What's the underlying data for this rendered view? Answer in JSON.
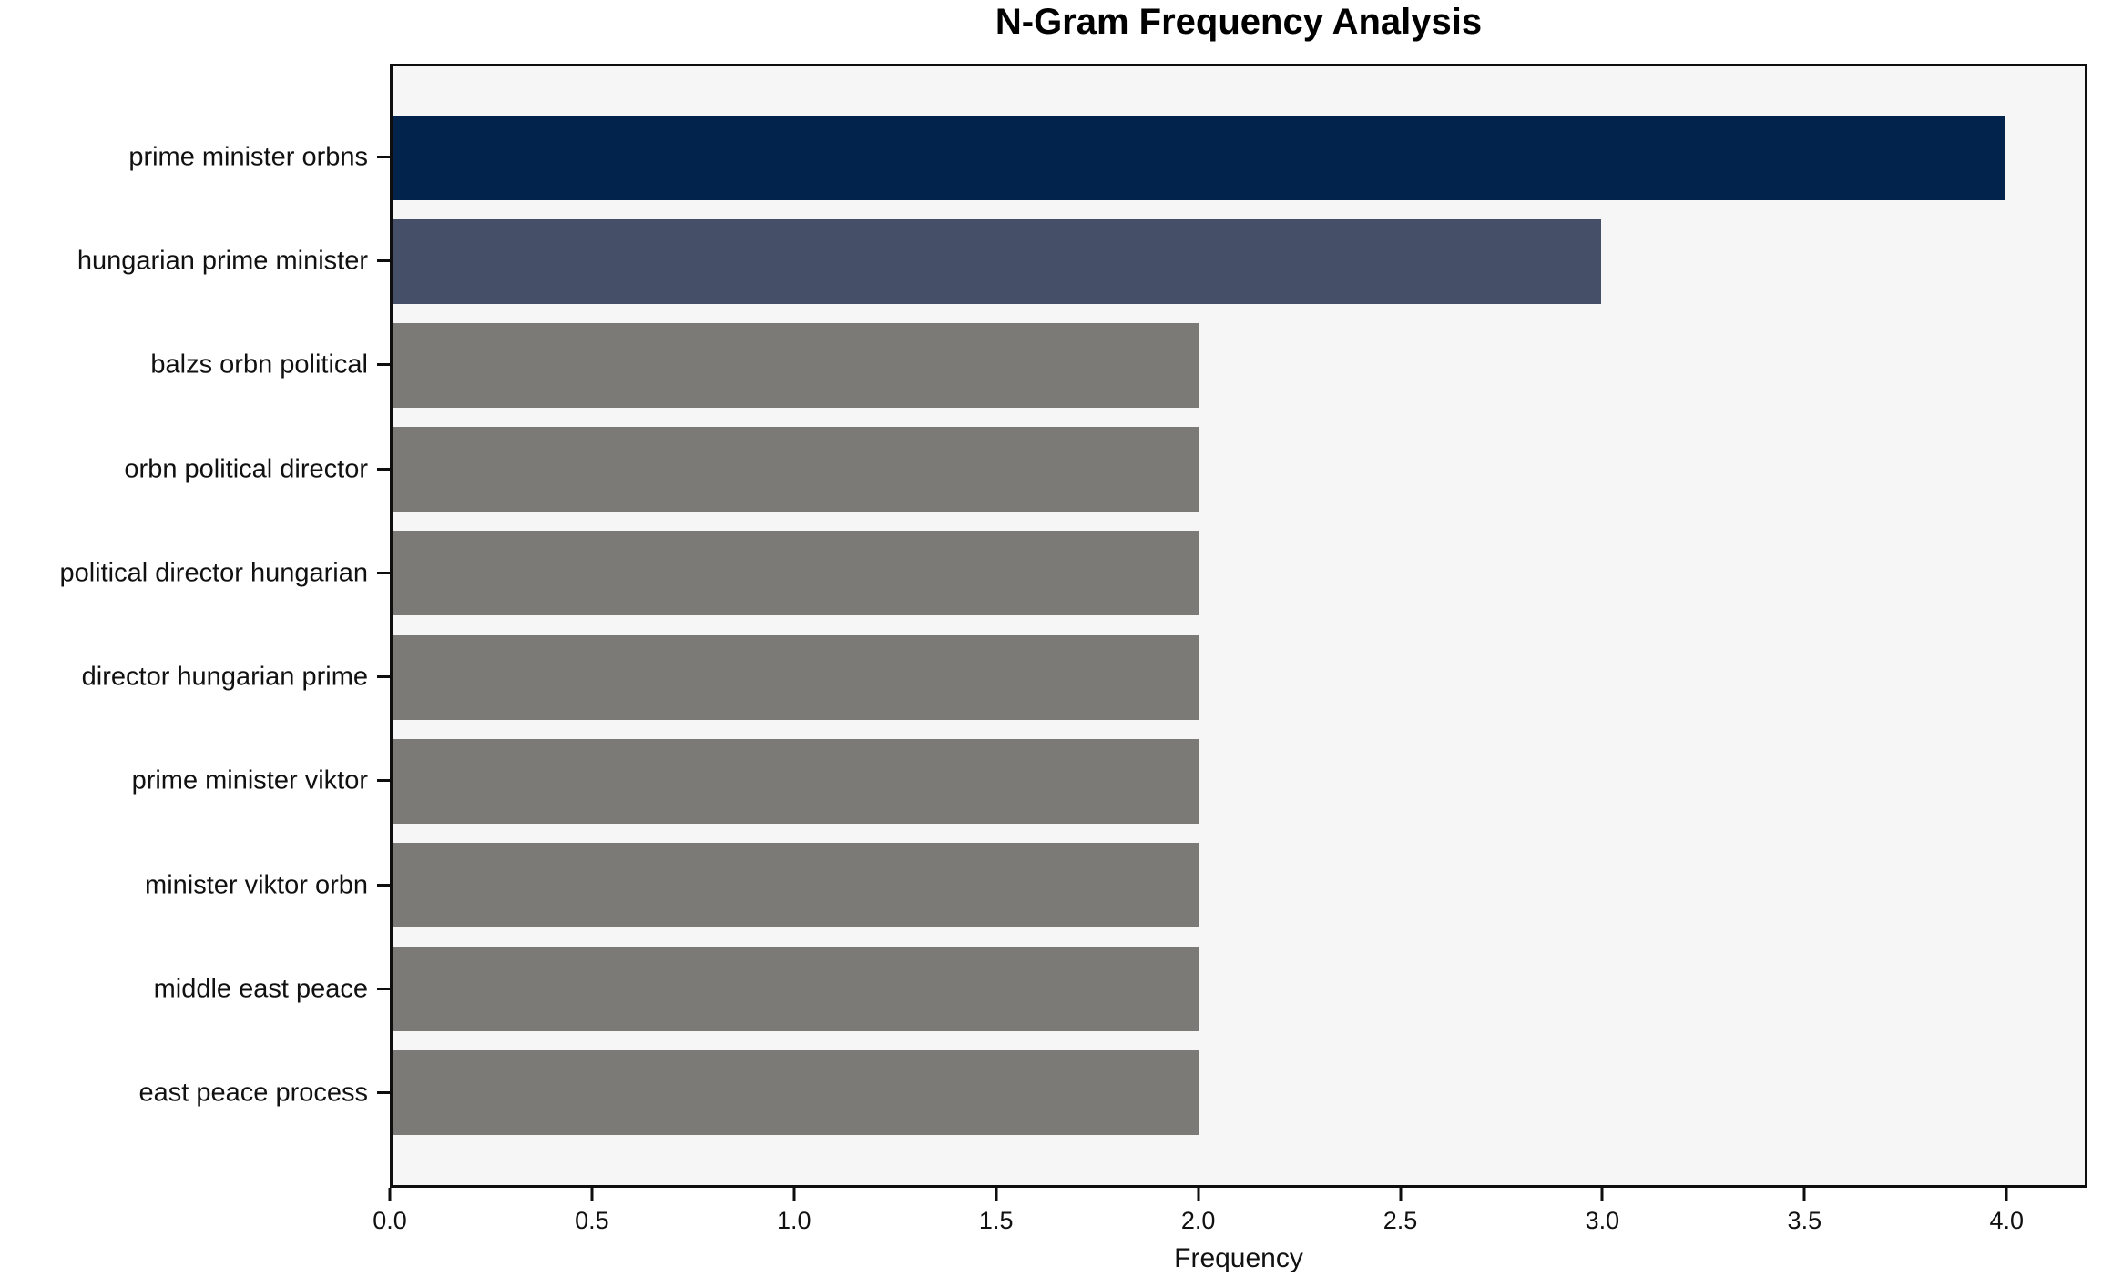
{
  "figure": {
    "title": "N-Gram Frequency Analysis",
    "xlabel": "Frequency"
  },
  "colors": {
    "bar_top": "#02234c",
    "bar_second": "#454f68",
    "bar_default": "#7b7a77",
    "plot_background": "#f7f6f6",
    "figure_background": "#ffffff",
    "spine": "#0e0e0e",
    "text": "#111111"
  },
  "chart_data": {
    "type": "bar",
    "orientation": "horizontal",
    "title": "N-Gram Frequency Analysis",
    "xlabel": "Frequency",
    "ylabel": "",
    "categories": [
      "prime minister orbns",
      "hungarian prime minister",
      "balzs orbn political",
      "orbn political director",
      "political director hungarian",
      "director hungarian prime",
      "prime minister viktor",
      "minister viktor orbn",
      "middle east peace",
      "east peace process"
    ],
    "values": [
      4,
      3,
      2,
      2,
      2,
      2,
      2,
      2,
      2,
      2
    ],
    "bar_colors": [
      "#02234c",
      "#454f68",
      "#7b7a77",
      "#7b7a77",
      "#7b7a77",
      "#7b7a77",
      "#7b7a77",
      "#7b7a77",
      "#7b7a77",
      "#7b7a77"
    ],
    "xlim": [
      0,
      4.2
    ],
    "xticks": [
      0.0,
      0.5,
      1.0,
      1.5,
      2.0,
      2.5,
      3.0,
      3.5,
      4.0
    ],
    "grid": false,
    "legend": null
  }
}
